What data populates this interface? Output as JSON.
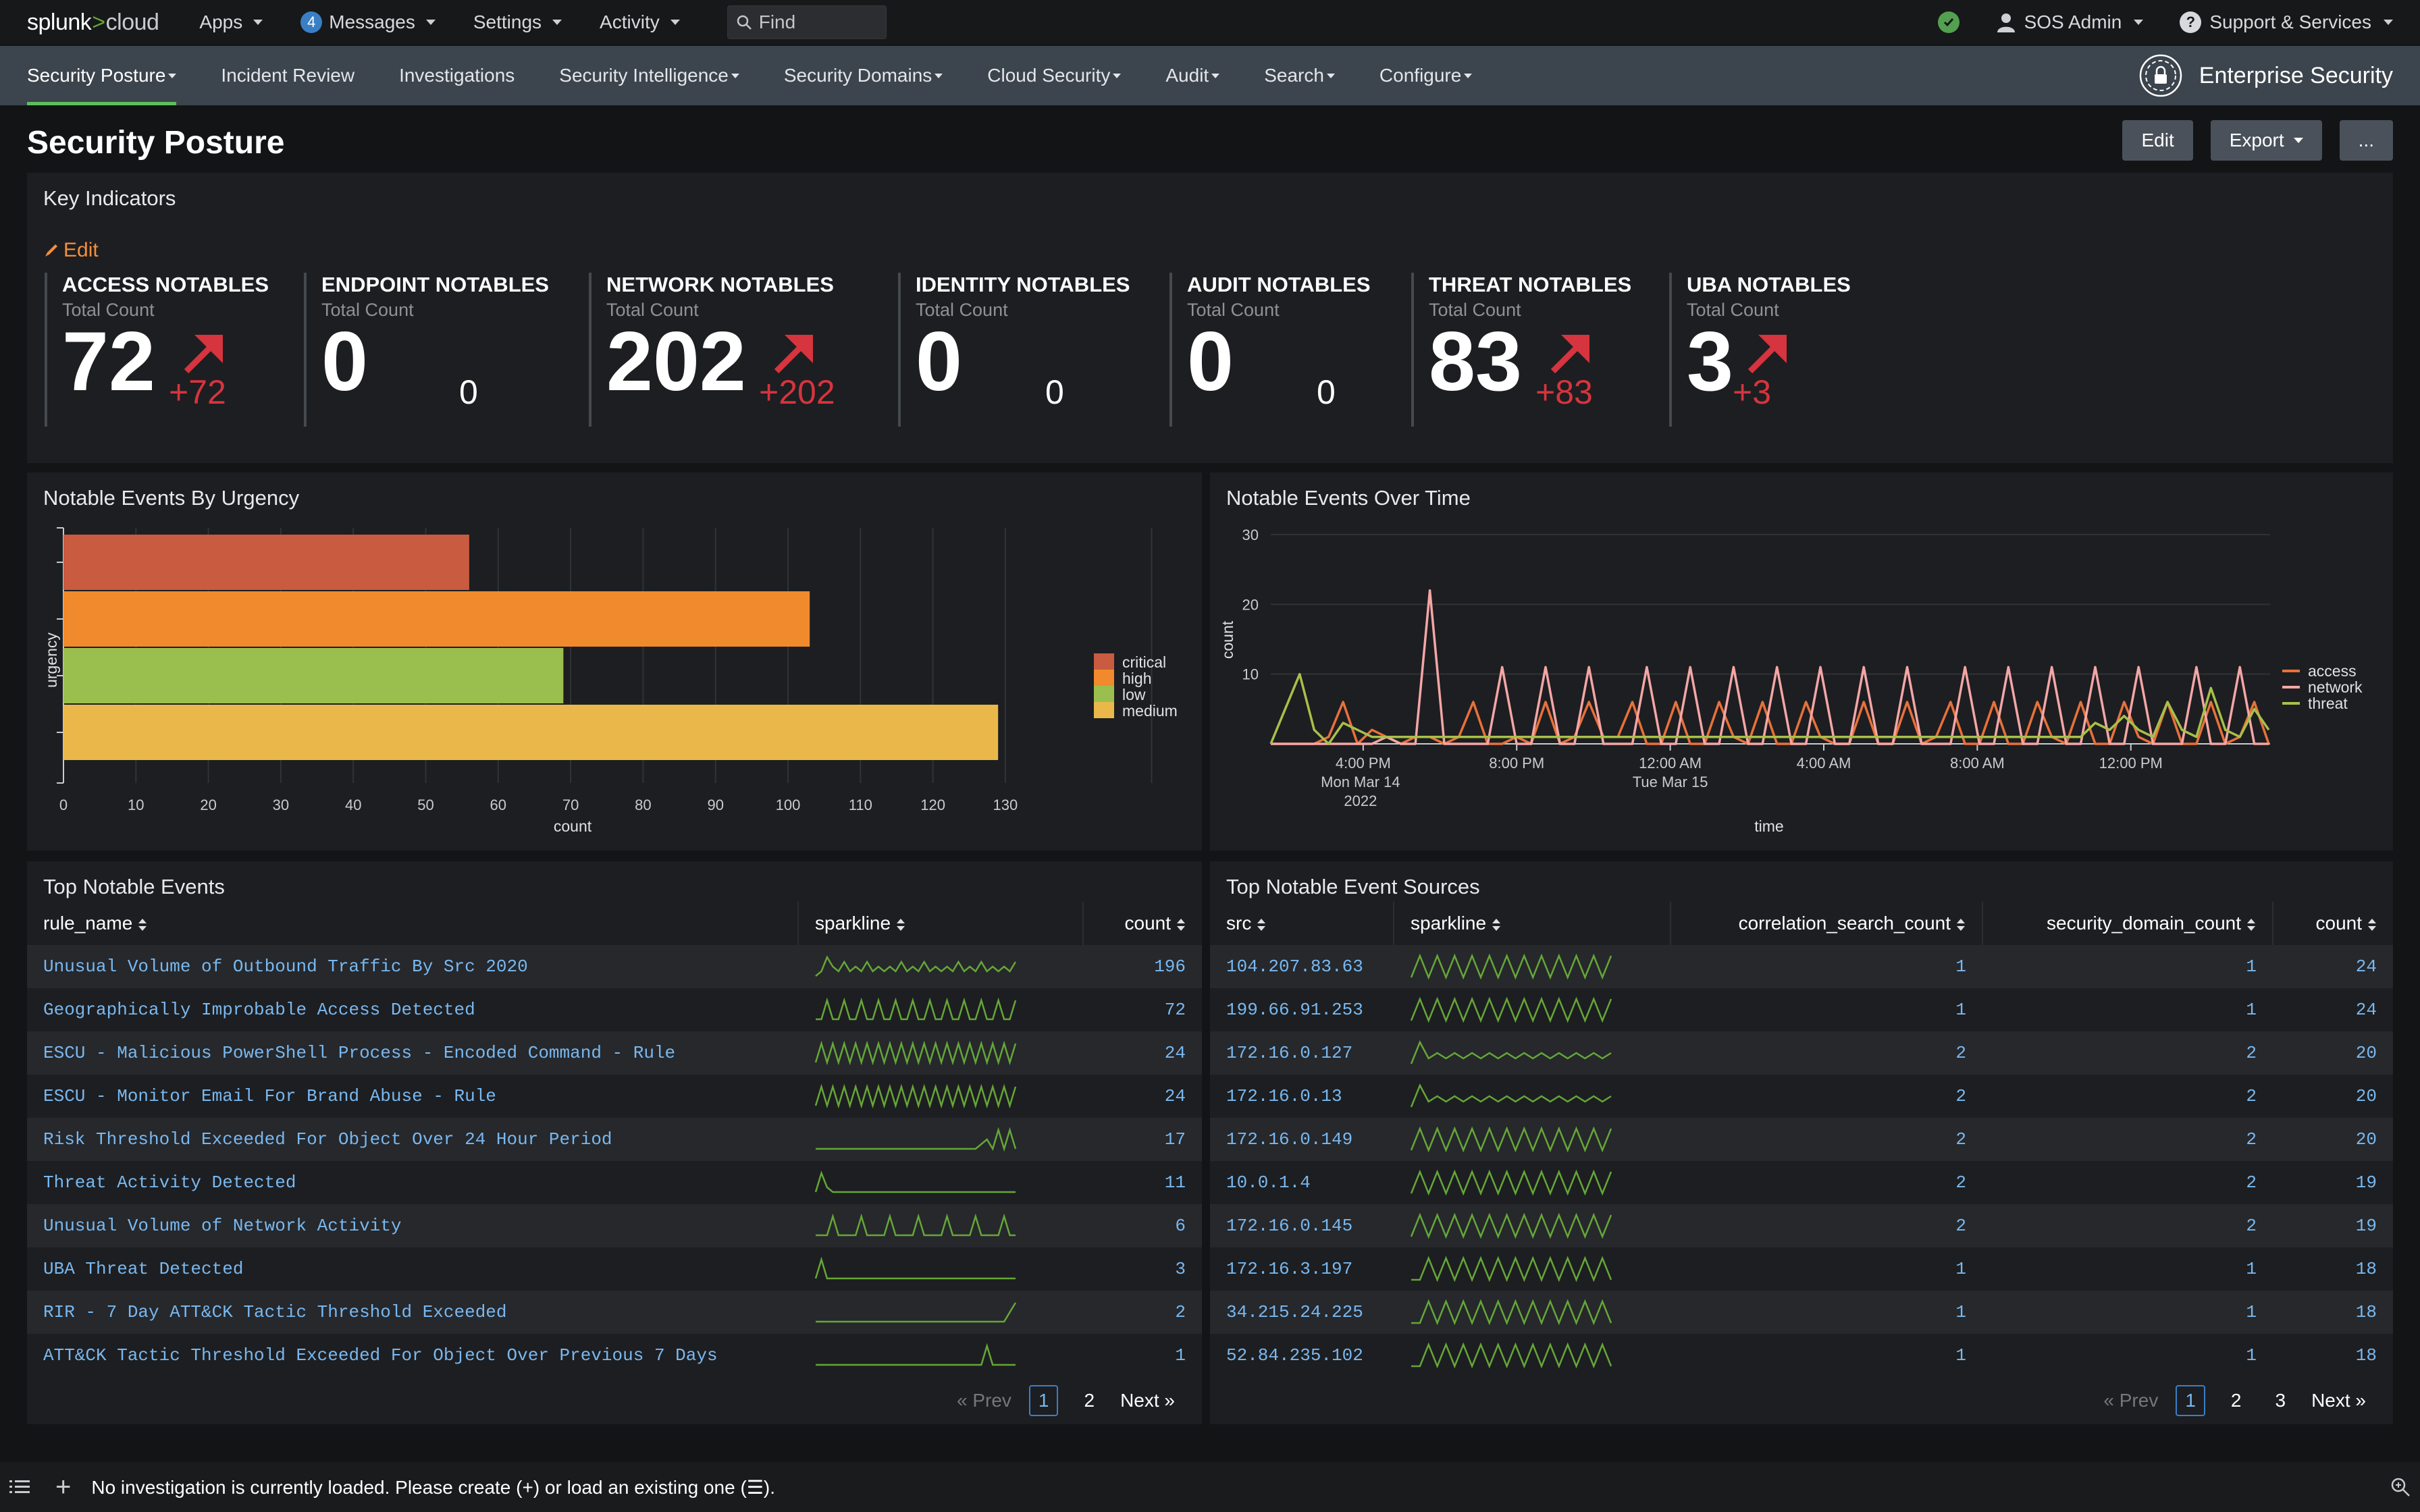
{
  "topbar": {
    "logo_main": "splunk",
    "logo_gt": ">",
    "logo_cloud": "cloud",
    "menu": [
      {
        "label": "Apps"
      },
      {
        "label": "Messages",
        "badge": "4"
      },
      {
        "label": "Settings"
      },
      {
        "label": "Activity"
      }
    ],
    "find_placeholder": "Find",
    "user": "SOS Admin",
    "support": "Support & Services"
  },
  "appnav": {
    "tabs": [
      {
        "label": "Security Posture",
        "dropdown": true,
        "active": true
      },
      {
        "label": "Incident Review",
        "dropdown": false
      },
      {
        "label": "Investigations",
        "dropdown": false
      },
      {
        "label": "Security Intelligence",
        "dropdown": true
      },
      {
        "label": "Security Domains",
        "dropdown": true
      },
      {
        "label": "Cloud Security",
        "dropdown": true
      },
      {
        "label": "Audit",
        "dropdown": true
      },
      {
        "label": "Search",
        "dropdown": true
      },
      {
        "label": "Configure",
        "dropdown": true
      }
    ],
    "brand": "Enterprise Security"
  },
  "page": {
    "title": "Security Posture",
    "edit_label": "Edit",
    "export_label": "Export",
    "more_label": "..."
  },
  "key_indicators": {
    "title": "Key Indicators",
    "edit_label": "Edit",
    "items": [
      {
        "label": "ACCESS NOTABLES",
        "sub": "Total Count",
        "value": "72",
        "delta": "+72",
        "trend": "up"
      },
      {
        "label": "ENDPOINT NOTABLES",
        "sub": "Total Count",
        "value": "0",
        "delta": "0",
        "trend": "none"
      },
      {
        "label": "NETWORK NOTABLES",
        "sub": "Total Count",
        "value": "202",
        "delta": "+202",
        "trend": "up"
      },
      {
        "label": "IDENTITY NOTABLES",
        "sub": "Total Count",
        "value": "0",
        "delta": "0",
        "trend": "none"
      },
      {
        "label": "AUDIT NOTABLES",
        "sub": "Total Count",
        "value": "0",
        "delta": "0",
        "trend": "none"
      },
      {
        "label": "THREAT NOTABLES",
        "sub": "Total Count",
        "value": "83",
        "delta": "+83",
        "trend": "up"
      },
      {
        "label": "UBA NOTABLES",
        "sub": "Total Count",
        "value": "3",
        "delta": "+3",
        "trend": "up"
      }
    ],
    "up_color": "#d6343e"
  },
  "urgency_chart": {
    "title": "Notable Events By Urgency",
    "chart_data": {
      "type": "bar",
      "orientation": "horizontal",
      "categories": [
        "critical",
        "high",
        "low",
        "medium"
      ],
      "values": [
        56,
        103,
        69,
        129
      ],
      "colors": [
        "#c95b40",
        "#f08a2c",
        "#9bbf4f",
        "#eab84a"
      ],
      "xlabel": "count",
      "ylabel": "urgency",
      "xlim": [
        0,
        140
      ],
      "xticks": [
        0,
        10,
        20,
        30,
        40,
        50,
        60,
        70,
        80,
        90,
        100,
        110,
        120,
        130
      ],
      "legend": "right"
    }
  },
  "time_chart": {
    "title": "Notable Events Over Time",
    "chart_data": {
      "type": "line",
      "xlabel": "time",
      "ylabel": "count",
      "ylim": [
        0,
        30
      ],
      "yticks": [
        10,
        20,
        30
      ],
      "xtick_labels": [
        [
          "4:00 PM",
          "Mon Mar 14",
          "2022"
        ],
        [
          "8:00 PM"
        ],
        [
          "12:00 AM",
          "Tue Mar 15"
        ],
        [
          "4:00 AM"
        ],
        [
          "8:00 AM"
        ],
        [
          "12:00 PM"
        ]
      ],
      "xtick_hours": [
        1,
        5,
        9,
        13,
        17,
        21
      ],
      "legend": "right",
      "series": [
        {
          "name": "access",
          "color": "#e8713a",
          "values": [
            0,
            0,
            0,
            0,
            1,
            6,
            0,
            2,
            1,
            0,
            1,
            1,
            0,
            1,
            6,
            0,
            0,
            1,
            0,
            6,
            0,
            1,
            6,
            1,
            1,
            6,
            0,
            0,
            6,
            0,
            0,
            6,
            1,
            0,
            6,
            0,
            0,
            6,
            1,
            0,
            0,
            6,
            0,
            0,
            6,
            0,
            1,
            6,
            0,
            0,
            6,
            0,
            0,
            6,
            1,
            0,
            6,
            0,
            0,
            6,
            1,
            0,
            6,
            0,
            0,
            6,
            0,
            1,
            6,
            0
          ]
        },
        {
          "name": "network",
          "color": "#f4a6a6",
          "values": [
            0,
            0,
            0,
            0,
            0,
            0,
            0,
            0,
            1,
            0,
            0,
            22,
            0,
            0,
            0,
            0,
            11,
            0,
            0,
            11,
            0,
            0,
            11,
            0,
            0,
            0,
            11,
            0,
            0,
            11,
            0,
            0,
            11,
            0,
            0,
            11,
            0,
            0,
            11,
            0,
            0,
            11,
            0,
            0,
            11,
            0,
            0,
            0,
            11,
            0,
            0,
            11,
            0,
            0,
            11,
            0,
            0,
            11,
            0,
            0,
            11,
            0,
            0,
            0,
            11,
            0,
            0,
            11,
            0,
            0
          ]
        },
        {
          "name": "threat",
          "color": "#a7c04a",
          "values": [
            0,
            5,
            10,
            2,
            0,
            3,
            2,
            1,
            1,
            1,
            1,
            1,
            1,
            1,
            1,
            1,
            1,
            1,
            1,
            1,
            1,
            1,
            1,
            1,
            1,
            1,
            1,
            1,
            1,
            1,
            1,
            1,
            1,
            1,
            1,
            1,
            1,
            1,
            1,
            1,
            1,
            1,
            1,
            1,
            1,
            1,
            1,
            1,
            1,
            1,
            1,
            1,
            1,
            1,
            1,
            1,
            1,
            3,
            2,
            4,
            2,
            1,
            6,
            2,
            1,
            8,
            2,
            1,
            5,
            2
          ]
        }
      ]
    }
  },
  "top_events": {
    "title": "Top Notable Events",
    "columns": [
      "rule_name",
      "sparkline",
      "count"
    ],
    "rows": [
      {
        "rule_name": "Unusual Volume of Outbound Traffic By Src 2020",
        "count": "196",
        "spark": [
          0,
          1,
          4,
          2,
          1,
          3,
          1,
          2,
          1,
          3,
          1,
          2,
          1,
          2,
          1,
          3,
          1,
          2,
          1,
          3,
          1,
          2,
          1,
          2,
          1,
          3,
          1,
          2,
          1,
          3,
          1,
          2,
          1,
          2,
          1,
          3
        ]
      },
      {
        "rule_name": "Geographically Improbable Access Detected",
        "count": "72",
        "spark": [
          0,
          0,
          4,
          0,
          0,
          4,
          0,
          0,
          4,
          0,
          0,
          4,
          0,
          0,
          4,
          0,
          0,
          4,
          0,
          0,
          4,
          0,
          0,
          4,
          0,
          0,
          4,
          0,
          0,
          4,
          0,
          0,
          4,
          0,
          0,
          4
        ]
      },
      {
        "rule_name": "ESCU - Malicious PowerShell Process - Encoded Command - Rule",
        "count": "24",
        "spark": [
          0,
          4,
          0,
          4,
          0,
          4,
          0,
          4,
          0,
          4,
          0,
          4,
          0,
          4,
          0,
          4,
          0,
          4,
          0,
          4,
          0,
          4,
          0,
          4,
          0,
          4,
          0,
          4,
          0,
          4,
          0,
          4,
          0,
          4,
          0,
          4
        ]
      },
      {
        "rule_name": "ESCU - Monitor Email For Brand Abuse - Rule",
        "count": "24",
        "spark": [
          0,
          4,
          0,
          4,
          0,
          4,
          0,
          4,
          0,
          4,
          0,
          4,
          0,
          4,
          0,
          4,
          0,
          4,
          0,
          4,
          0,
          4,
          0,
          4,
          0,
          4,
          0,
          4,
          0,
          4,
          0,
          4,
          0,
          4,
          0,
          4
        ]
      },
      {
        "rule_name": "Risk Threshold Exceeded For Object Over 24 Hour Period",
        "count": "17",
        "spark": [
          0,
          0,
          0,
          0,
          0,
          0,
          0,
          0,
          0,
          0,
          0,
          0,
          0,
          0,
          0,
          0,
          0,
          0,
          0,
          0,
          0,
          0,
          0,
          0,
          0,
          0,
          0,
          0,
          0,
          1,
          2,
          0,
          4,
          0,
          4,
          0
        ]
      },
      {
        "rule_name": "Threat Activity Detected",
        "count": "11",
        "spark": [
          0,
          4,
          1,
          0,
          0,
          0,
          0,
          0,
          0,
          0,
          0,
          0,
          0,
          0,
          0,
          0,
          0,
          0,
          0,
          0,
          0,
          0,
          0,
          0,
          0,
          0,
          0,
          0,
          0,
          0,
          0,
          0,
          0,
          0,
          0,
          0
        ]
      },
      {
        "rule_name": "Unusual Volume of Network Activity",
        "count": "6",
        "spark": [
          0,
          0,
          0,
          4,
          0,
          0,
          0,
          0,
          4,
          0,
          0,
          0,
          0,
          4,
          0,
          0,
          0,
          0,
          4,
          0,
          0,
          0,
          0,
          4,
          0,
          0,
          0,
          0,
          4,
          0,
          0,
          0,
          0,
          4,
          0,
          0
        ]
      },
      {
        "rule_name": "UBA Threat Detected",
        "count": "3",
        "spark": [
          0,
          4,
          0,
          0,
          0,
          0,
          0,
          0,
          0,
          0,
          0,
          0,
          0,
          0,
          0,
          0,
          0,
          0,
          0,
          0,
          0,
          0,
          0,
          0,
          0,
          0,
          0,
          0,
          0,
          0,
          0,
          0,
          0,
          0,
          0,
          0
        ]
      },
      {
        "rule_name": "RIR - 7 Day ATT&CK Tactic Threshold Exceeded",
        "count": "2",
        "spark": [
          0,
          0,
          0,
          0,
          0,
          0,
          0,
          0,
          0,
          0,
          0,
          0,
          0,
          0,
          0,
          0,
          0,
          0,
          0,
          0,
          0,
          0,
          0,
          0,
          0,
          0,
          0,
          0,
          0,
          0,
          0,
          0,
          0,
          0,
          2,
          4
        ]
      },
      {
        "rule_name": "ATT&CK Tactic Threshold Exceeded For Object Over Previous 7 Days",
        "count": "1",
        "spark": [
          0,
          0,
          0,
          0,
          0,
          0,
          0,
          0,
          0,
          0,
          0,
          0,
          0,
          0,
          0,
          0,
          0,
          0,
          0,
          0,
          0,
          0,
          0,
          0,
          0,
          0,
          0,
          0,
          0,
          0,
          4,
          0,
          0,
          0,
          0,
          0
        ]
      }
    ],
    "pager": {
      "prev": "« Prev",
      "pages": [
        "1",
        "2"
      ],
      "current": "1",
      "next": "Next »"
    }
  },
  "top_sources": {
    "title": "Top Notable Event Sources",
    "columns": [
      "src",
      "sparkline",
      "correlation_search_count",
      "security_domain_count",
      "count"
    ],
    "rows": [
      {
        "src": "104.207.83.63",
        "csc": "1",
        "sdc": "1",
        "count": "24",
        "spark": [
          0,
          4,
          0,
          4,
          0,
          4,
          0,
          4,
          0,
          4,
          0,
          4,
          0,
          4,
          0,
          4,
          0,
          4,
          0,
          4,
          0,
          4,
          0,
          4
        ]
      },
      {
        "src": "199.66.91.253",
        "csc": "1",
        "sdc": "1",
        "count": "24",
        "spark": [
          0,
          4,
          0,
          4,
          0,
          4,
          0,
          4,
          0,
          4,
          0,
          4,
          0,
          4,
          0,
          4,
          0,
          4,
          0,
          4,
          0,
          4,
          0,
          4
        ]
      },
      {
        "src": "172.16.0.127",
        "csc": "2",
        "sdc": "2",
        "count": "20",
        "spark": [
          0,
          4,
          1,
          2,
          1,
          2,
          1,
          2,
          1,
          2,
          1,
          2,
          1,
          2,
          1,
          2,
          1,
          2,
          1,
          2,
          1,
          2,
          1,
          2
        ]
      },
      {
        "src": "172.16.0.13",
        "csc": "2",
        "sdc": "2",
        "count": "20",
        "spark": [
          0,
          4,
          1,
          2,
          1,
          2,
          1,
          2,
          1,
          2,
          1,
          2,
          1,
          2,
          1,
          2,
          1,
          2,
          1,
          2,
          1,
          2,
          1,
          2
        ]
      },
      {
        "src": "172.16.0.149",
        "csc": "2",
        "sdc": "2",
        "count": "20",
        "spark": [
          0,
          4,
          0,
          4,
          0,
          4,
          0,
          4,
          0,
          4,
          0,
          4,
          0,
          4,
          0,
          4,
          0,
          4,
          0,
          4,
          0,
          4,
          0,
          4
        ]
      },
      {
        "src": "10.0.1.4",
        "csc": "2",
        "sdc": "2",
        "count": "19",
        "spark": [
          0,
          4,
          0,
          4,
          0,
          4,
          0,
          4,
          0,
          4,
          0,
          4,
          0,
          4,
          0,
          4,
          0,
          4,
          0,
          4,
          0,
          4,
          0,
          4
        ]
      },
      {
        "src": "172.16.0.145",
        "csc": "2",
        "sdc": "2",
        "count": "19",
        "spark": [
          0,
          4,
          0,
          4,
          0,
          4,
          0,
          4,
          0,
          4,
          0,
          4,
          0,
          4,
          0,
          4,
          0,
          4,
          0,
          4,
          0,
          4,
          0,
          4
        ]
      },
      {
        "src": "172.16.3.197",
        "csc": "1",
        "sdc": "1",
        "count": "18",
        "spark": [
          0,
          0,
          4,
          0,
          4,
          0,
          4,
          0,
          4,
          0,
          4,
          0,
          4,
          0,
          4,
          0,
          4,
          0,
          4,
          0,
          4,
          0,
          4,
          0
        ]
      },
      {
        "src": "34.215.24.225",
        "csc": "1",
        "sdc": "1",
        "count": "18",
        "spark": [
          0,
          0,
          4,
          0,
          4,
          0,
          4,
          0,
          4,
          0,
          4,
          0,
          4,
          0,
          4,
          0,
          4,
          0,
          4,
          0,
          4,
          0,
          4,
          0
        ]
      },
      {
        "src": "52.84.235.102",
        "csc": "1",
        "sdc": "1",
        "count": "18",
        "spark": [
          0,
          0,
          4,
          0,
          4,
          0,
          4,
          0,
          4,
          0,
          4,
          0,
          4,
          0,
          4,
          0,
          4,
          0,
          4,
          0,
          4,
          0,
          4,
          0
        ]
      }
    ],
    "pager": {
      "prev": "« Prev",
      "pages": [
        "1",
        "2",
        "3"
      ],
      "current": "1",
      "next": "Next »"
    }
  },
  "bottombar": {
    "message": "No investigation is currently loaded. Please create (+) or load an existing one (☰)."
  },
  "colors": {
    "spark": "#65a637",
    "link": "#79b8f0",
    "accent_green": "#5cc05c",
    "edit_orange": "#f58f39"
  }
}
